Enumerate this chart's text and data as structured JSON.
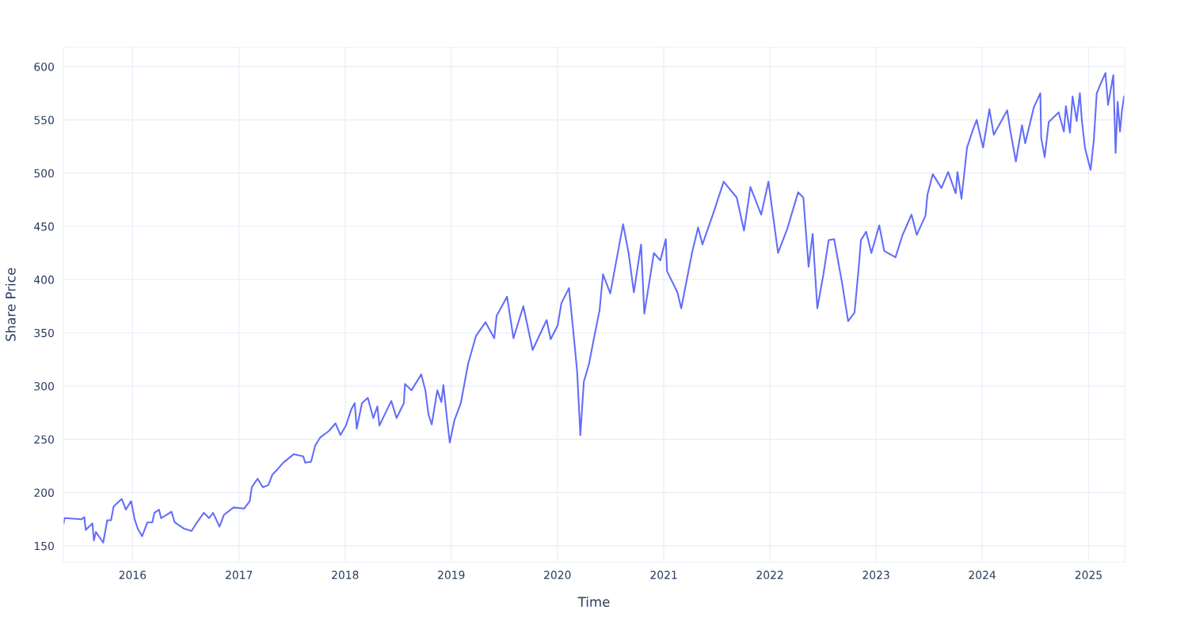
{
  "chart_data": {
    "type": "line",
    "xlabel": "Time",
    "ylabel": "Share Price",
    "x": [
      "2015-05-09",
      "2015-05-12",
      "2015-07-10",
      "2015-07-19",
      "2015-07-24",
      "2015-08-16",
      "2015-08-21",
      "2015-08-28",
      "2015-09-22",
      "2015-10-06",
      "2015-10-19",
      "2015-10-28",
      "2015-11-25",
      "2015-12-09",
      "2015-12-27",
      "2016-01-08",
      "2016-01-19",
      "2016-02-03",
      "2016-02-21",
      "2016-03-09",
      "2016-03-16",
      "2016-04-01",
      "2016-04-08",
      "2016-04-26",
      "2016-05-14",
      "2016-05-25",
      "2016-06-27",
      "2016-07-22",
      "2016-08-07",
      "2016-09-02",
      "2016-09-20",
      "2016-10-04",
      "2016-10-26",
      "2016-11-10",
      "2016-12-13",
      "2017-01-19",
      "2017-02-07",
      "2017-02-14",
      "2017-03-06",
      "2017-03-24",
      "2017-04-12",
      "2017-04-26",
      "2017-05-14",
      "2017-06-02",
      "2017-07-08",
      "2017-08-10",
      "2017-08-17",
      "2017-09-06",
      "2017-09-20",
      "2017-10-08",
      "2017-11-07",
      "2017-11-29",
      "2017-12-16",
      "2018-01-04",
      "2018-01-22",
      "2018-02-03",
      "2018-02-10",
      "2018-02-28",
      "2018-03-20",
      "2018-04-08",
      "2018-04-22",
      "2018-04-29",
      "2018-05-29",
      "2018-06-09",
      "2018-06-27",
      "2018-07-22",
      "2018-07-26",
      "2018-08-17",
      "2018-09-20",
      "2018-10-04",
      "2018-10-15",
      "2018-10-26",
      "2018-11-14",
      "2018-11-28",
      "2018-12-05",
      "2018-12-16",
      "2018-12-27",
      "2019-01-12",
      "2019-02-03",
      "2019-02-28",
      "2019-03-27",
      "2019-04-29",
      "2019-05-29",
      "2019-06-06",
      "2019-07-12",
      "2019-08-03",
      "2019-09-06",
      "2019-10-08",
      "2019-11-25",
      "2019-12-09",
      "2020-01-02",
      "2020-01-15",
      "2020-02-10",
      "2020-02-25",
      "2020-03-09",
      "2020-03-20",
      "2020-04-01",
      "2020-04-19",
      "2020-05-03",
      "2020-05-25",
      "2020-06-06",
      "2020-07-01",
      "2020-07-22",
      "2020-08-14",
      "2020-09-02",
      "2020-09-20",
      "2020-10-15",
      "2020-10-26",
      "2020-11-28",
      "2020-12-20",
      "2021-01-08",
      "2021-01-12",
      "2021-02-17",
      "2021-03-02",
      "2021-04-08",
      "2021-04-29",
      "2021-05-14",
      "2021-06-20",
      "2021-07-26",
      "2021-09-09",
      "2021-10-04",
      "2021-10-26",
      "2021-12-02",
      "2021-12-27",
      "2022-01-29",
      "2022-03-02",
      "2022-04-08",
      "2022-04-26",
      "2022-05-14",
      "2022-05-28",
      "2022-06-13",
      "2022-07-04",
      "2022-07-22",
      "2022-08-10",
      "2022-09-06",
      "2022-09-27",
      "2022-10-19",
      "2022-11-03",
      "2022-11-10",
      "2022-11-28",
      "2022-12-16",
      "2023-01-12",
      "2023-01-29",
      "2023-03-09",
      "2023-04-01",
      "2023-05-03",
      "2023-05-21",
      "2023-06-20",
      "2023-06-27",
      "2023-07-15",
      "2023-08-14",
      "2023-09-06",
      "2023-10-02",
      "2023-10-08",
      "2023-10-22",
      "2023-11-10",
      "2023-11-28",
      "2023-12-13",
      "2024-01-04",
      "2024-01-26",
      "2024-02-10",
      "2024-03-27",
      "2024-04-08",
      "2024-04-26",
      "2024-05-17",
      "2024-05-28",
      "2024-06-27",
      "2024-07-19",
      "2024-07-22",
      "2024-08-03",
      "2024-08-17",
      "2024-09-20",
      "2024-10-08",
      "2024-10-15",
      "2024-10-29",
      "2024-11-07",
      "2024-11-21",
      "2024-12-02",
      "2024-12-09",
      "2024-12-20",
      "2025-01-08",
      "2025-01-19",
      "2025-01-29",
      "2025-02-10",
      "2025-02-28",
      "2025-03-09",
      "2025-03-27",
      "2025-04-04",
      "2025-04-11",
      "2025-04-19",
      "2025-04-26",
      "2025-05-03"
    ],
    "series": [
      {
        "color": "#636efa",
        "values": [
          171,
          176,
          175,
          177,
          165,
          171,
          155,
          163,
          153,
          174,
          174,
          187,
          194,
          184,
          192,
          175,
          166,
          159,
          172,
          172,
          181,
          184,
          176,
          179,
          182,
          172,
          166,
          164,
          171,
          181,
          176,
          181,
          168,
          179,
          186,
          185,
          192,
          205,
          213,
          205,
          207,
          217,
          222,
          228,
          236,
          234,
          228,
          229,
          244,
          252,
          258,
          265,
          254,
          263,
          278,
          284,
          260,
          284,
          289,
          270,
          281,
          263,
          280,
          286,
          270,
          284,
          302,
          296,
          311,
          296,
          273,
          264,
          296,
          285,
          301,
          273,
          247,
          268,
          284,
          321,
          347,
          360,
          345,
          366,
          384,
          345,
          375,
          334,
          362,
          344,
          357,
          378,
          392,
          351,
          314,
          254,
          304,
          321,
          341,
          371,
          405,
          387,
          418,
          452,
          425,
          388,
          433,
          368,
          425,
          418,
          438,
          408,
          388,
          373,
          425,
          449,
          433,
          462,
          492,
          477,
          446,
          487,
          461,
          492,
          425,
          448,
          482,
          477,
          412,
          443,
          373,
          405,
          437,
          438,
          397,
          361,
          369,
          413,
          437,
          445,
          425,
          451,
          427,
          421,
          441,
          461,
          442,
          460,
          480,
          499,
          486,
          501,
          481,
          501,
          476,
          524,
          539,
          550,
          524,
          560,
          536,
          559,
          538,
          511,
          545,
          528,
          562,
          575,
          533,
          515,
          548,
          557,
          539,
          563,
          538,
          572,
          549,
          575,
          549,
          523,
          503,
          531,
          575,
          583,
          594,
          564,
          592,
          519,
          567,
          539,
          559,
          572
        ]
      }
    ],
    "xlim": [
      "2015-05-08",
      "2025-05-05"
    ],
    "xticks": [
      {
        "value": "2016",
        "label": "2016"
      },
      {
        "value": "2017",
        "label": "2017"
      },
      {
        "value": "2018",
        "label": "2018"
      },
      {
        "value": "2019",
        "label": "2019"
      },
      {
        "value": "2020",
        "label": "2020"
      },
      {
        "value": "2021",
        "label": "2021"
      },
      {
        "value": "2022",
        "label": "2022"
      },
      {
        "value": "2023",
        "label": "2023"
      },
      {
        "value": "2024",
        "label": "2024"
      },
      {
        "value": "2025",
        "label": "2025"
      }
    ],
    "ylim": [
      135,
      618
    ],
    "yticks": [
      150,
      200,
      250,
      300,
      350,
      400,
      450,
      500,
      550,
      600
    ],
    "grid": true,
    "marker": "none",
    "line_style": "solid"
  }
}
